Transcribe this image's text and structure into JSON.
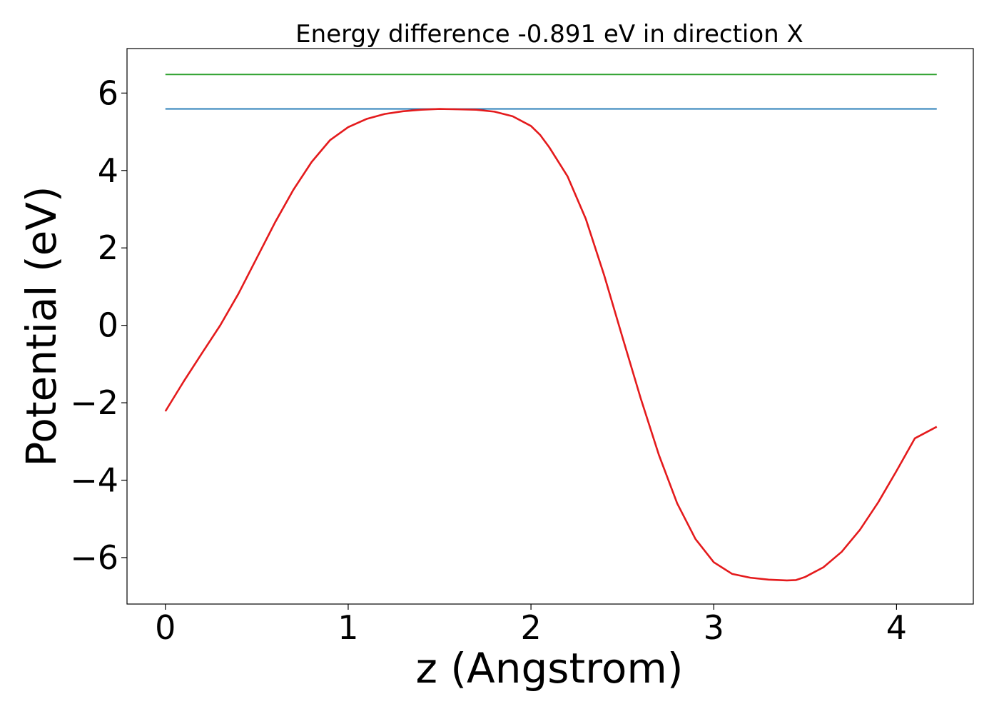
{
  "chart_data": {
    "type": "line",
    "title": "Energy difference -0.891 eV in direction X",
    "xlabel": "z (Angstrom)",
    "ylabel": "Potential (eV)",
    "xlim": [
      -0.21,
      4.42
    ],
    "ylim": [
      -7.2,
      7.15
    ],
    "xticks": [
      0,
      1,
      2,
      3,
      4
    ],
    "xtick_labels": [
      "0",
      "1",
      "2",
      "3",
      "4"
    ],
    "yticks": [
      -6,
      -4,
      -2,
      0,
      2,
      4,
      6
    ],
    "ytick_labels": [
      "−6",
      "−4",
      "−2",
      "0",
      "2",
      "4",
      "6"
    ],
    "grid": false,
    "legend": "none",
    "series": [
      {
        "color": "#2ca02c",
        "x": [
          0,
          4.22
        ],
        "y": [
          6.48,
          6.48
        ]
      },
      {
        "color": "#1f77b4",
        "x": [
          0,
          4.22
        ],
        "y": [
          5.59,
          5.59
        ]
      },
      {
        "color": "#e41a1c",
        "x": [
          0,
          0.1,
          0.2,
          0.3,
          0.4,
          0.5,
          0.6,
          0.7,
          0.8,
          0.9,
          1.0,
          1.1,
          1.2,
          1.3,
          1.4,
          1.5,
          1.6,
          1.7,
          1.8,
          1.9,
          2.0,
          2.05,
          2.1,
          2.2,
          2.3,
          2.4,
          2.5,
          2.6,
          2.7,
          2.8,
          2.9,
          3.0,
          3.1,
          3.2,
          3.3,
          3.4,
          3.45,
          3.5,
          3.6,
          3.7,
          3.8,
          3.9,
          4.0,
          4.1,
          4.22
        ],
        "y": [
          -2.22,
          -1.45,
          -0.72,
          0.0,
          0.82,
          1.74,
          2.66,
          3.5,
          4.22,
          4.78,
          5.12,
          5.33,
          5.46,
          5.53,
          5.57,
          5.59,
          5.58,
          5.57,
          5.52,
          5.4,
          5.15,
          4.92,
          4.6,
          3.85,
          2.75,
          1.3,
          -0.3,
          -1.88,
          -3.35,
          -4.6,
          -5.52,
          -6.12,
          -6.42,
          -6.52,
          -6.57,
          -6.59,
          -6.58,
          -6.5,
          -6.25,
          -5.85,
          -5.28,
          -4.57,
          -3.76,
          -2.92,
          -2.62
        ]
      }
    ]
  }
}
